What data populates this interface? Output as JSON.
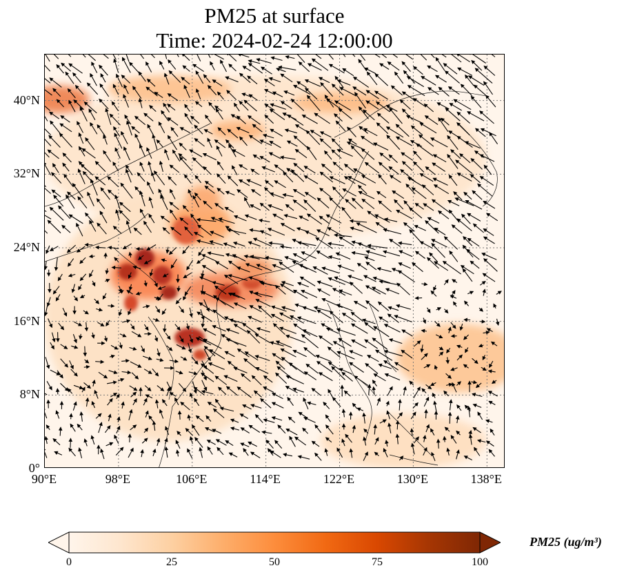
{
  "title_line1": "PM25 at surface",
  "title_line2": "Time: 2024-02-24 12:00:00",
  "map": {
    "lon_range": [
      90,
      140
    ],
    "lat_range": [
      0,
      45
    ],
    "x_ticks": [
      "90°E",
      "98°E",
      "106°E",
      "114°E",
      "122°E",
      "130°E",
      "138°E"
    ],
    "y_ticks": [
      "0°",
      "8°N",
      "16°N",
      "24°N",
      "32°N",
      "40°N"
    ],
    "gridlines": "dotted"
  },
  "colorbar": {
    "label": "PM25 (ug/m³)",
    "ticks": [
      "0",
      "25",
      "50",
      "75",
      "100"
    ],
    "range": [
      0,
      100
    ],
    "extend": "both",
    "colormap": [
      "#fff5eb",
      "#fee6ce",
      "#fdd0a2",
      "#fdae6b",
      "#fd8d3c",
      "#f16913",
      "#d94801",
      "#a63603",
      "#7f2704"
    ]
  }
}
